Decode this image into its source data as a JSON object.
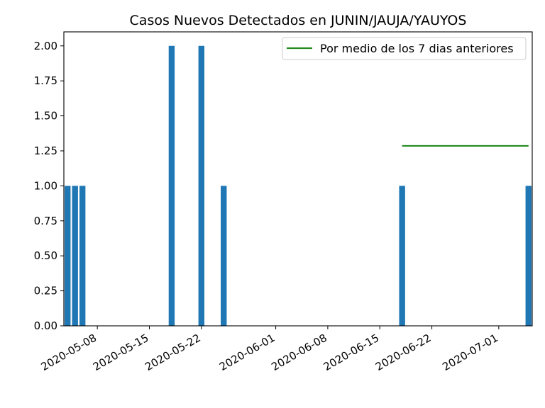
{
  "chart_data": {
    "type": "bar",
    "title": "Casos Nuevos Detectados en JUNIN/JAUJA/YAUYOS",
    "xlabel": "",
    "ylabel": "",
    "ylim": [
      0,
      2.1
    ],
    "xlim": [
      "2020-05-04",
      "2020-07-05"
    ],
    "yticks": [
      0.0,
      0.25,
      0.5,
      0.75,
      1.0,
      1.25,
      1.5,
      1.75,
      2.0
    ],
    "ytick_labels": [
      "0.00",
      "0.25",
      "0.50",
      "0.75",
      "1.00",
      "1.25",
      "1.50",
      "1.75",
      "2.00"
    ],
    "xticks": [
      "2020-05-08",
      "2020-05-15",
      "2020-05-22",
      "2020-06-01",
      "2020-06-08",
      "2020-06-15",
      "2020-06-22",
      "2020-07-01"
    ],
    "bars": [
      {
        "date": "2020-05-04",
        "value": 1
      },
      {
        "date": "2020-05-05",
        "value": 1
      },
      {
        "date": "2020-05-06",
        "value": 1
      },
      {
        "date": "2020-05-18",
        "value": 2
      },
      {
        "date": "2020-05-22",
        "value": 2
      },
      {
        "date": "2020-05-25",
        "value": 1
      },
      {
        "date": "2020-06-18",
        "value": 1
      },
      {
        "date": "2020-07-05",
        "value": 1
      }
    ],
    "series": [
      {
        "name": "Por medio de los 7 dias anteriores",
        "type": "line",
        "x": [
          "2020-06-18",
          "2020-07-05"
        ],
        "values": [
          1.2857,
          1.2857
        ]
      }
    ],
    "bar_color": "#1f77b4",
    "line_color": "#228B22",
    "legend_position": "top-right",
    "grid": false
  }
}
